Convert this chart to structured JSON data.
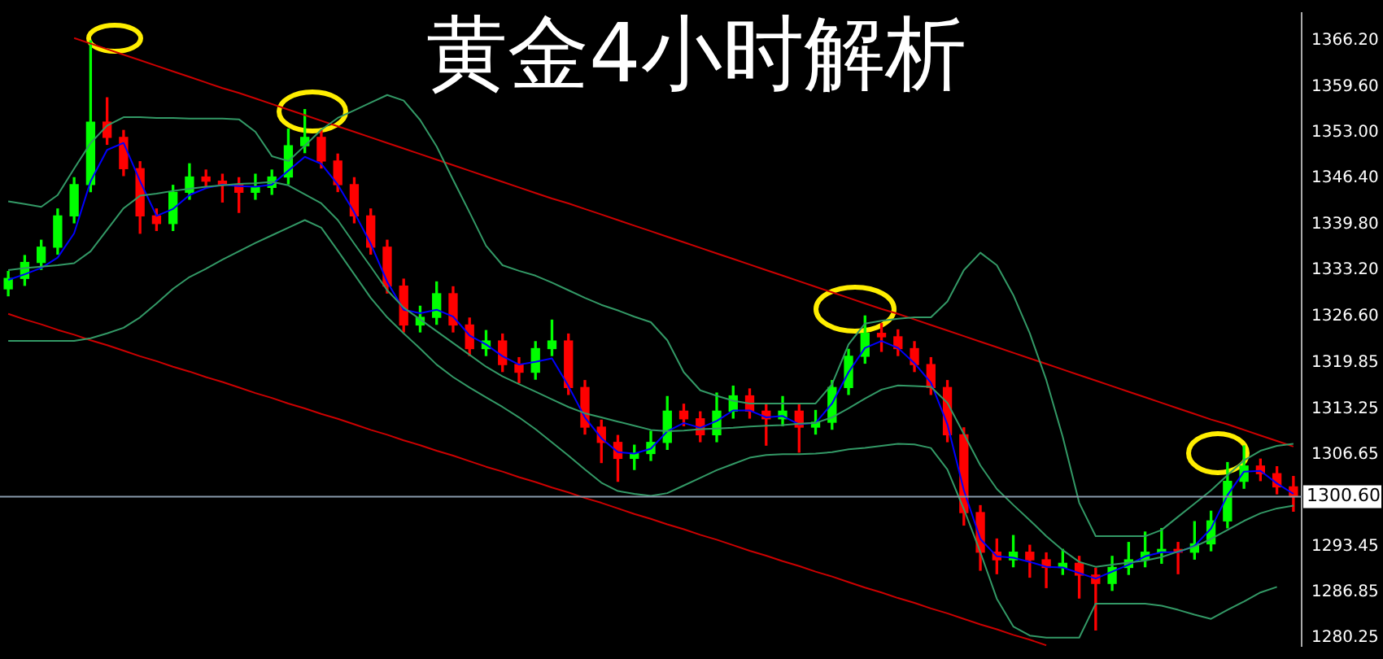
{
  "chart_data": {
    "type": "candlestick",
    "title": "黄金4小时解析",
    "categories": [
      null,
      null,
      null,
      null,
      null,
      null,
      null,
      null,
      null,
      null,
      null,
      null,
      null,
      null,
      null,
      null,
      null,
      null,
      null,
      null,
      null,
      null,
      null,
      null,
      null,
      null,
      null,
      null,
      null,
      null,
      null,
      null,
      null,
      null,
      null,
      null,
      null,
      null,
      null,
      null,
      null,
      null,
      null,
      null,
      null,
      null,
      null,
      null,
      null,
      null,
      null,
      null,
      null,
      null,
      null,
      null,
      null,
      null,
      null,
      null,
      null,
      null,
      null,
      null,
      null,
      null,
      null,
      null,
      null,
      null,
      null,
      null,
      null,
      null,
      null,
      null,
      null,
      null,
      null
    ],
    "ohlc": [
      [
        1330.5,
        1333.0,
        1329.5,
        1332.0
      ],
      [
        1332.0,
        1335.3,
        1331.0,
        1334.3
      ],
      [
        1334.3,
        1337.5,
        1333.3,
        1336.5
      ],
      [
        1336.5,
        1342.0,
        1335.5,
        1341.0
      ],
      [
        1341.0,
        1346.5,
        1340.0,
        1345.5
      ],
      [
        1345.5,
        1366.2,
        1344.5,
        1354.5
      ],
      [
        1354.5,
        1358.0,
        1351.3,
        1352.3
      ],
      [
        1352.3,
        1353.3,
        1346.8,
        1347.8
      ],
      [
        1347.8,
        1348.8,
        1338.5,
        1341.0
      ],
      [
        1341.0,
        1342.0,
        1338.9,
        1339.9
      ],
      [
        1339.9,
        1345.4,
        1338.9,
        1344.4
      ],
      [
        1344.4,
        1348.5,
        1343.4,
        1346.6
      ],
      [
        1346.6,
        1347.6,
        1345.0,
        1346.0
      ],
      [
        1346.0,
        1347.0,
        1343.0,
        1345.5
      ],
      [
        1345.5,
        1346.5,
        1341.5,
        1344.4
      ],
      [
        1344.4,
        1347.0,
        1343.4,
        1345.1
      ],
      [
        1345.1,
        1347.6,
        1344.1,
        1346.6
      ],
      [
        1346.6,
        1353.5,
        1345.6,
        1351.1
      ],
      [
        1351.1,
        1356.3,
        1350.1,
        1352.3
      ],
      [
        1352.3,
        1353.3,
        1347.9,
        1348.9
      ],
      [
        1348.9,
        1349.9,
        1344.5,
        1345.5
      ],
      [
        1345.5,
        1346.5,
        1340.0,
        1341.0
      ],
      [
        1341.0,
        1342.0,
        1335.5,
        1336.5
      ],
      [
        1336.5,
        1337.5,
        1329.9,
        1330.9
      ],
      [
        1330.9,
        1331.9,
        1324.3,
        1325.3
      ],
      [
        1325.3,
        1328.0,
        1324.3,
        1326.4
      ],
      [
        1326.4,
        1331.5,
        1325.4,
        1329.8
      ],
      [
        1329.8,
        1330.8,
        1324.3,
        1325.3
      ],
      [
        1325.3,
        1326.3,
        1320.9,
        1321.9
      ],
      [
        1321.9,
        1324.5,
        1320.9,
        1323.0
      ],
      [
        1323.0,
        1324.0,
        1318.6,
        1319.6
      ],
      [
        1319.6,
        1320.6,
        1317.0,
        1318.5
      ],
      [
        1318.5,
        1322.9,
        1317.5,
        1321.9
      ],
      [
        1321.9,
        1326.0,
        1320.9,
        1323.0
      ],
      [
        1323.0,
        1324.0,
        1315.3,
        1316.3
      ],
      [
        1316.3,
        1317.3,
        1309.6,
        1310.6
      ],
      [
        1310.6,
        1311.6,
        1305.5,
        1308.4
      ],
      [
        1308.4,
        1309.4,
        1302.8,
        1306.1
      ],
      [
        1306.1,
        1308.0,
        1304.5,
        1306.8
      ],
      [
        1306.8,
        1310.0,
        1305.8,
        1308.4
      ],
      [
        1308.4,
        1315.0,
        1307.4,
        1312.9
      ],
      [
        1312.9,
        1313.9,
        1310.8,
        1311.8
      ],
      [
        1311.8,
        1312.8,
        1308.5,
        1309.5
      ],
      [
        1309.5,
        1315.5,
        1308.5,
        1312.9
      ],
      [
        1312.9,
        1316.5,
        1311.9,
        1315.1
      ],
      [
        1315.1,
        1316.1,
        1311.9,
        1312.9
      ],
      [
        1312.9,
        1313.9,
        1308.0,
        1311.8
      ],
      [
        1311.8,
        1315.0,
        1310.8,
        1312.9
      ],
      [
        1312.9,
        1313.9,
        1307.0,
        1310.6
      ],
      [
        1310.6,
        1313.0,
        1309.6,
        1311.3
      ],
      [
        1311.3,
        1317.3,
        1310.3,
        1316.3
      ],
      [
        1316.3,
        1321.8,
        1315.3,
        1320.8
      ],
      [
        1320.8,
        1326.6,
        1319.8,
        1324.1
      ],
      [
        1324.1,
        1325.5,
        1321.5,
        1323.6
      ],
      [
        1323.6,
        1324.6,
        1320.9,
        1321.9
      ],
      [
        1321.9,
        1322.9,
        1318.6,
        1319.6
      ],
      [
        1319.6,
        1320.6,
        1315.3,
        1316.3
      ],
      [
        1316.3,
        1317.3,
        1308.5,
        1309.5
      ],
      [
        1309.5,
        1310.5,
        1296.5,
        1298.3
      ],
      [
        1298.3,
        1299.3,
        1290.0,
        1292.6
      ],
      [
        1292.6,
        1294.5,
        1289.5,
        1291.5
      ],
      [
        1291.5,
        1295.0,
        1290.5,
        1292.6
      ],
      [
        1292.6,
        1293.6,
        1289.0,
        1291.5
      ],
      [
        1291.5,
        1292.5,
        1287.5,
        1290.4
      ],
      [
        1290.4,
        1293.0,
        1289.4,
        1291.0
      ],
      [
        1291.0,
        1292.0,
        1286.0,
        1289.3
      ],
      [
        1289.3,
        1290.3,
        1281.4,
        1288.1
      ],
      [
        1288.1,
        1292.0,
        1287.1,
        1290.4
      ],
      [
        1290.4,
        1294.0,
        1289.4,
        1291.5
      ],
      [
        1291.5,
        1295.5,
        1290.5,
        1292.6
      ],
      [
        1292.6,
        1296.0,
        1291.0,
        1293.0
      ],
      [
        1293.0,
        1294.0,
        1289.5,
        1292.6
      ],
      [
        1292.6,
        1297.0,
        1291.6,
        1293.8
      ],
      [
        1293.8,
        1298.5,
        1292.8,
        1297.1
      ],
      [
        1297.1,
        1305.5,
        1296.1,
        1302.8
      ],
      [
        1302.8,
        1307.9,
        1301.8,
        1305.0
      ],
      [
        1305.0,
        1306.0,
        1302.9,
        1303.9
      ],
      [
        1303.9,
        1304.9,
        1301.0,
        1302.0
      ],
      [
        1302.0,
        1303.5,
        1298.5,
        1300.6
      ]
    ],
    "colors": [
      "#00ff00",
      "#00ff00",
      "#00ff00",
      "#00ff00",
      "#00ff00",
      "#00ff00",
      "#ff0000",
      "#ff0000",
      "#ff0000",
      "#ff0000",
      "#00ff00",
      "#00ff00",
      "#ff0000",
      "#ff0000",
      "#ff0000",
      "#00ff00",
      "#00ff00",
      "#00ff00",
      "#00ff00",
      "#ff0000",
      "#ff0000",
      "#ff0000",
      "#ff0000",
      "#ff0000",
      "#ff0000",
      "#00ff00",
      "#00ff00",
      "#ff0000",
      "#ff0000",
      "#00ff00",
      "#ff0000",
      "#ff0000",
      "#00ff00",
      "#00ff00",
      "#ff0000",
      "#ff0000",
      "#ff0000",
      "#ff0000",
      "#00ff00",
      "#00ff00",
      "#00ff00",
      "#ff0000",
      "#ff0000",
      "#00ff00",
      "#00ff00",
      "#ff0000",
      "#ff0000",
      "#00ff00",
      "#ff0000",
      "#00ff00",
      "#00ff00",
      "#00ff00",
      "#00ff00",
      "#ff0000",
      "#ff0000",
      "#ff0000",
      "#ff0000",
      "#ff0000",
      "#ff0000",
      "#ff0000",
      "#ff0000",
      "#00ff00",
      "#ff0000",
      "#ff0000",
      "#00ff00",
      "#ff0000",
      "#ff0000",
      "#00ff00",
      "#00ff00",
      "#00ff00",
      "#00ff00",
      "#ff0000",
      "#00ff00",
      "#00ff00",
      "#00ff00",
      "#00ff00",
      "#ff0000",
      "#ff0000",
      "#ff0000"
    ],
    "series": [
      {
        "type": "line",
        "color": "#339966",
        "values": [
          1343.1,
          1342.7,
          1342.3,
          1344.0,
          1347.8,
          1351.5,
          1354.0,
          1355.2,
          1355.2,
          1355.1,
          1355.1,
          1355.0,
          1355.0,
          1355.0,
          1354.9,
          1353.1,
          1349.6,
          1348.9,
          1351.1,
          1353.4,
          1355.1,
          1356.2,
          1357.3,
          1358.4,
          1357.6,
          1354.8,
          1351.0,
          1346.2,
          1341.5,
          1336.7,
          1333.9,
          1333.1,
          1332.4,
          1331.4,
          1330.3,
          1329.2,
          1328.2,
          1327.4,
          1326.5,
          1325.7,
          1323.1,
          1318.5,
          1315.9,
          1315.1,
          1314.4,
          1314.0,
          1314.0,
          1314.0,
          1314.0,
          1314.0,
          1316.8,
          1322.5,
          1325.5,
          1325.9,
          1326.2,
          1326.4,
          1326.4,
          1328.7,
          1333.2,
          1335.7,
          1333.9,
          1329.6,
          1324.1,
          1317.4,
          1309.2,
          1299.7,
          1294.9,
          1294.9,
          1294.9,
          1294.9,
          1295.8,
          1297.7,
          1299.6,
          1301.5,
          1303.7,
          1305.8,
          1307.2,
          1307.9,
          1308.2
        ]
      },
      {
        "type": "line",
        "color": "#339966",
        "values": [
          1333.2,
          1333.5,
          1333.7,
          1333.9,
          1334.2,
          1335.9,
          1339.0,
          1342.1,
          1343.9,
          1344.2,
          1344.6,
          1344.9,
          1345.2,
          1345.4,
          1345.6,
          1345.7,
          1345.9,
          1345.4,
          1344.1,
          1342.8,
          1340.4,
          1337.0,
          1333.7,
          1330.3,
          1327.8,
          1326.1,
          1324.4,
          1322.7,
          1321.0,
          1319.3,
          1317.9,
          1316.8,
          1315.7,
          1314.6,
          1313.5,
          1312.6,
          1312.0,
          1311.4,
          1310.8,
          1310.2,
          1310.0,
          1310.1,
          1310.3,
          1310.4,
          1310.5,
          1310.7,
          1310.8,
          1310.9,
          1311.1,
          1311.2,
          1312.0,
          1313.3,
          1314.7,
          1316.0,
          1316.6,
          1316.5,
          1316.4,
          1314.1,
          1309.6,
          1305.1,
          1301.7,
          1299.4,
          1297.2,
          1294.9,
          1292.9,
          1291.2,
          1290.5,
          1290.8,
          1291.1,
          1291.4,
          1291.9,
          1292.7,
          1293.4,
          1294.5,
          1295.8,
          1297.1,
          1298.2,
          1298.9,
          1299.3
        ]
      },
      {
        "type": "line",
        "color": "#339966",
        "values": [
          1323.0,
          1323.0,
          1323.0,
          1323.0,
          1323.0,
          1323.4,
          1324.1,
          1324.9,
          1326.4,
          1328.4,
          1330.5,
          1332.2,
          1333.4,
          1334.7,
          1335.9,
          1337.1,
          1338.2,
          1339.3,
          1340.4,
          1339.3,
          1336.0,
          1332.6,
          1329.2,
          1326.4,
          1324.1,
          1321.9,
          1319.6,
          1317.8,
          1316.3,
          1314.9,
          1313.5,
          1312.0,
          1310.3,
          1308.4,
          1306.5,
          1304.5,
          1302.6,
          1301.4,
          1301.0,
          1300.7,
          1301.1,
          1302.2,
          1303.3,
          1304.4,
          1305.3,
          1306.2,
          1306.6,
          1306.7,
          1306.7,
          1306.8,
          1307.0,
          1307.4,
          1307.6,
          1307.9,
          1308.2,
          1308.1,
          1307.6,
          1304.5,
          1298.8,
          1292.6,
          1285.9,
          1281.9,
          1280.6,
          1280.3,
          1280.3,
          1280.3,
          1285.2,
          1285.2,
          1285.2,
          1285.2,
          1284.9,
          1284.3,
          1283.6,
          1283.0,
          1284.3,
          1285.5,
          1286.8,
          1287.6,
          null
        ]
      },
      {
        "type": "line",
        "color": "#0000ff",
        "values": [
          1331.8,
          1332.6,
          1333.5,
          1335.0,
          1338.5,
          1346.0,
          1350.5,
          1351.5,
          1346.0,
          1341.0,
          1342.0,
          1344.0,
          1345.0,
          1345.5,
          1345.3,
          1345.2,
          1345.5,
          1347.5,
          1349.5,
          1348.5,
          1345.5,
          1341.5,
          1337.0,
          1331.5,
          1327.5,
          1327.0,
          1327.5,
          1326.5,
          1323.8,
          1322.5,
          1320.8,
          1319.6,
          1320.0,
          1320.5,
          1316.5,
          1312.0,
          1309.0,
          1307.0,
          1306.8,
          1307.5,
          1310.0,
          1311.2,
          1310.5,
          1311.5,
          1313.0,
          1313.0,
          1312.0,
          1312.2,
          1311.0,
          1311.2,
          1314.0,
          1318.5,
          1322.0,
          1323.0,
          1322.0,
          1319.8,
          1317.0,
          1311.0,
          1301.5,
          1294.5,
          1292.0,
          1291.8,
          1291.2,
          1290.5,
          1290.4,
          1289.6,
          1288.8,
          1289.8,
          1290.8,
          1292.0,
          1292.6,
          1292.6,
          1293.5,
          1296.0,
          1300.8,
          1304.2,
          1304.3,
          1302.5,
          1301.0
        ]
      },
      {
        "type": "line",
        "color": "#cc0000",
        "values": [
          null,
          null,
          null,
          null,
          1366.6,
          1365.8,
          1365.0,
          1364.2,
          1363.4,
          1362.6,
          1361.8,
          1361.0,
          1360.2,
          1359.4,
          1358.7,
          1357.9,
          1357.1,
          1356.3,
          1355.5,
          1354.7,
          1353.9,
          1353.1,
          1352.3,
          1351.5,
          1350.7,
          1349.9,
          1349.1,
          1348.3,
          1347.5,
          1346.7,
          1345.9,
          1345.1,
          1344.3,
          1343.5,
          1342.8,
          1342.0,
          1341.2,
          1340.4,
          1339.6,
          1338.8,
          1338.0,
          1337.2,
          1336.4,
          1335.6,
          1334.8,
          1334.0,
          1333.2,
          1332.4,
          1331.6,
          1330.8,
          1330.0,
          1329.2,
          1328.4,
          1327.6,
          1326.9,
          1326.1,
          1325.3,
          1324.5,
          1323.7,
          1322.9,
          1322.1,
          1321.3,
          1320.5,
          1319.7,
          1318.9,
          1318.1,
          1317.3,
          1316.5,
          1315.7,
          1314.9,
          1314.1,
          1313.3,
          1312.5,
          1311.7,
          1311.0,
          1310.2,
          1309.4,
          1308.6,
          1307.8
        ]
      },
      {
        "type": "line",
        "color": "#cc0000",
        "values": [
          1326.9,
          1326.1,
          1325.4,
          1324.6,
          1323.9,
          1323.1,
          1322.4,
          1321.6,
          1320.8,
          1320.1,
          1319.3,
          1318.6,
          1317.8,
          1317.1,
          1316.3,
          1315.5,
          1314.8,
          1314.0,
          1313.3,
          1312.5,
          1311.8,
          1311.0,
          1310.2,
          1309.5,
          1308.7,
          1308.0,
          1307.2,
          1306.5,
          1305.7,
          1304.9,
          1304.2,
          1303.4,
          1302.7,
          1301.9,
          1301.2,
          1300.4,
          1299.7,
          1298.9,
          1298.1,
          1297.4,
          1296.6,
          1295.9,
          1295.1,
          1294.4,
          1293.6,
          1292.8,
          1292.1,
          1291.3,
          1290.6,
          1289.8,
          1289.1,
          1288.3,
          1287.5,
          1286.8,
          1286.0,
          1285.3,
          1284.5,
          1283.8,
          1283.0,
          1282.2,
          1281.5,
          1280.7,
          1280.0,
          1279.2,
          null,
          null,
          null,
          null,
          null,
          null,
          null,
          null,
          null,
          null,
          null,
          null,
          null,
          null,
          null
        ]
      }
    ],
    "ylim": [
      1279.1,
      1370.2
    ],
    "yticks": [
      {
        "value": 1366.2,
        "label": "1366.20"
      },
      {
        "value": 1359.6,
        "label": "1359.60"
      },
      {
        "value": 1353,
        "label": "1353.00"
      },
      {
        "value": 1346.4,
        "label": "1346.40"
      },
      {
        "value": 1339.8,
        "label": "1339.80"
      },
      {
        "value": 1333.2,
        "label": "1333.20"
      },
      {
        "value": 1326.6,
        "label": "1326.60"
      },
      {
        "value": 1319.85,
        "label": "1319.85"
      },
      {
        "value": 1313.25,
        "label": "1313.25"
      },
      {
        "value": 1306.65,
        "label": "1306.65"
      },
      {
        "value": 1293.45,
        "label": "1293.45"
      },
      {
        "value": 1286.85,
        "label": "1286.85"
      },
      {
        "value": 1280.25,
        "label": "1280.25"
      }
    ],
    "ref_lines": [
      {
        "axis": "y",
        "value": 1300.6,
        "label": "1300.60",
        "color": "#8899aa"
      }
    ],
    "tick_labels": "y",
    "legend": false,
    "grid": false
  }
}
